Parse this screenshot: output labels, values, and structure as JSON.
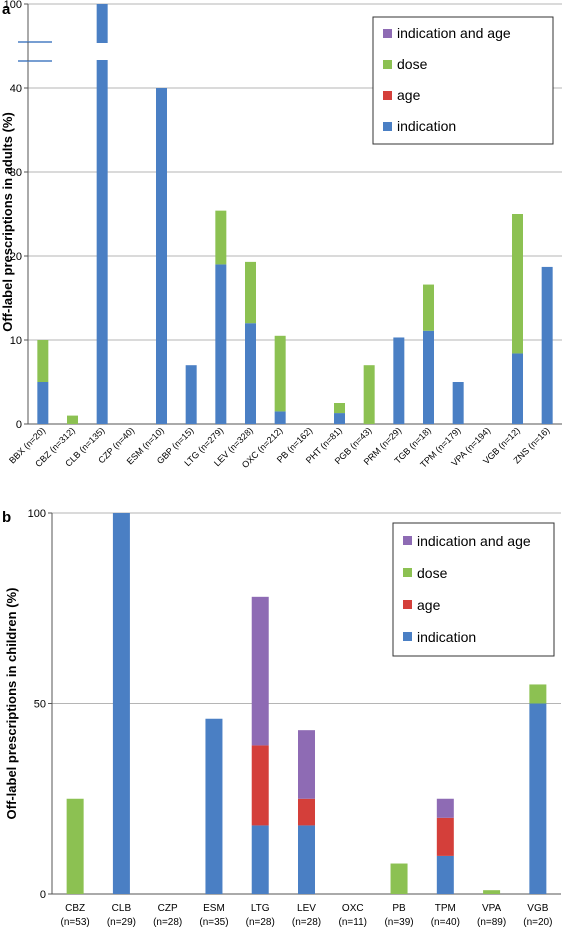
{
  "chart_data": [
    {
      "type": "bar",
      "stacked": true,
      "panel_label": "a",
      "ylabel": "Off-label prescriptions in adults (%)",
      "xlabel": "",
      "y_ticks": [
        "0",
        "10",
        "20",
        "30",
        "40",
        "100"
      ],
      "axis_break": "between 40 and 100",
      "grid": true,
      "legend_position": "top-right",
      "categories": [
        "BBX (n=20)",
        "CBZ (n=312)",
        "CLB (n=135)",
        "CZP (n=40)",
        "ESM (n=10)",
        "GBP (n=15)",
        "LTG (n=279)",
        "LEV (n=328)",
        "OXC (n=212)",
        "PB (n=162)",
        "PHT (n=81)",
        "PGB (n=43)",
        "PRM (n=29)",
        "TGB (n=18)",
        "TPM (n=179)",
        "VPA (n=194)",
        "VGB (n=12)",
        "ZNS (n=16)"
      ],
      "series": [
        {
          "name": "indication",
          "color": "#4a7fc4",
          "values": [
            5,
            0,
            100,
            0,
            40,
            7,
            19,
            12,
            1.5,
            0,
            1.3,
            0,
            10.3,
            11.1,
            5,
            0,
            8.4,
            18.7
          ]
        },
        {
          "name": "age",
          "color": "#d43f3a",
          "values": [
            0,
            0,
            0,
            0,
            0,
            0,
            0,
            0,
            0,
            0,
            0,
            0,
            0,
            0,
            0,
            0,
            0,
            0
          ]
        },
        {
          "name": "dose",
          "color": "#8cc152",
          "values": [
            5,
            1,
            0,
            0,
            0,
            0,
            6.4,
            7.3,
            9,
            0,
            1.2,
            7,
            0,
            5.5,
            0,
            0,
            16.6,
            0
          ]
        },
        {
          "name": "indication and age",
          "color": "#8e6bb4",
          "values": [
            0,
            0,
            0,
            0,
            0,
            0,
            0,
            0,
            0,
            0,
            0,
            0,
            0,
            0,
            0,
            0,
            0,
            0
          ]
        }
      ],
      "legend_order": [
        "indication and age",
        "dose",
        "age",
        "indication"
      ]
    },
    {
      "type": "bar",
      "stacked": true,
      "panel_label": "b",
      "ylabel": "Off-label prescriptions in children (%)",
      "xlabel": "",
      "y_ticks": [
        "0",
        "50",
        "100"
      ],
      "ylim": [
        0,
        100
      ],
      "grid": true,
      "legend_position": "top-right",
      "categories": [
        [
          "CBZ",
          "(n=53)"
        ],
        [
          "CLB",
          "(n=29)"
        ],
        [
          "CZP",
          "(n=28)"
        ],
        [
          "ESM",
          "(n=35)"
        ],
        [
          "LTG",
          "(n=28)"
        ],
        [
          "LEV",
          "(n=28)"
        ],
        [
          "OXC",
          "(n=11)"
        ],
        [
          "PB",
          "(n=39)"
        ],
        [
          "TPM",
          "(n=40)"
        ],
        [
          "VPA",
          "(n=89)"
        ],
        [
          "VGB",
          "(n=20)"
        ]
      ],
      "series": [
        {
          "name": "indication",
          "color": "#4a7fc4",
          "values": [
            0,
            100,
            0,
            46,
            18,
            18,
            0,
            0,
            10,
            0,
            50
          ]
        },
        {
          "name": "age",
          "color": "#d43f3a",
          "values": [
            0,
            0,
            0,
            0,
            21,
            7,
            0,
            0,
            10,
            0,
            0
          ]
        },
        {
          "name": "dose",
          "color": "#8cc152",
          "values": [
            25,
            0,
            0,
            0,
            0,
            0,
            0,
            8,
            0,
            1,
            5
          ]
        },
        {
          "name": "indication and age",
          "color": "#8e6bb4",
          "values": [
            0,
            0,
            0,
            0,
            39,
            18,
            0,
            0,
            5,
            0,
            0
          ]
        }
      ],
      "legend_order": [
        "indication and age",
        "dose",
        "age",
        "indication"
      ]
    }
  ]
}
